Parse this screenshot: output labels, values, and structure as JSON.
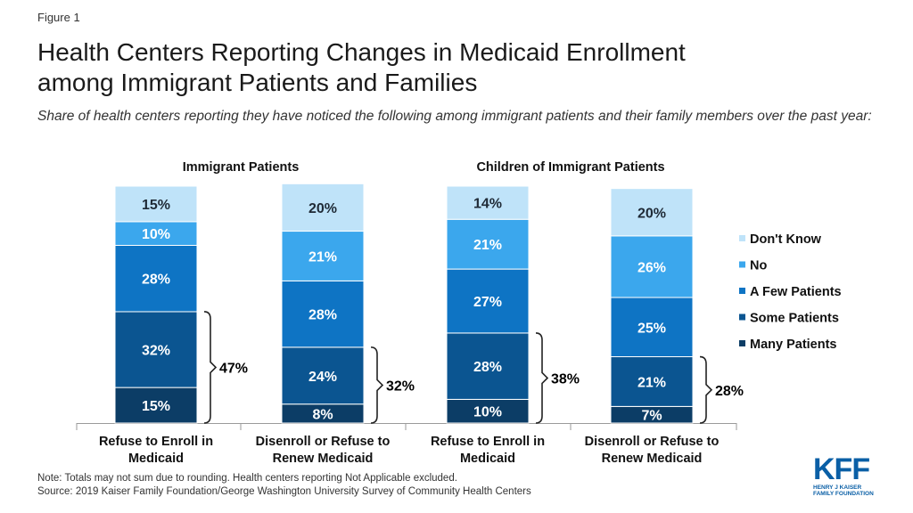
{
  "figure_label": "Figure 1",
  "title_line1": "Health Centers Reporting Changes in Medicaid Enrollment",
  "title_line2": "among Immigrant Patients and Families",
  "subtitle": "Share of health centers reporting they have noticed the following among immigrant patients and their family members over the past year:",
  "note": "Note: Totals may not sum due to rounding. Health centers reporting Not Applicable excluded.",
  "source": "Source: 2019 Kaiser Family Foundation/George Washington University Survey of Community Health Centers",
  "logo": {
    "main": "KFF",
    "line1": "HENRY J KAISER",
    "line2": "FAMILY FOUNDATION"
  },
  "chart_data": {
    "type": "bar",
    "stacked": true,
    "groups": [
      "Immigrant Patients",
      "Children of Immigrant Patients"
    ],
    "categories": [
      {
        "group": "Immigrant Patients",
        "line1": "Refuse to Enroll in",
        "line2": "Medicaid"
      },
      {
        "group": "Immigrant Patients",
        "line1": "Disenroll or Refuse to",
        "line2": "Renew Medicaid"
      },
      {
        "group": "Children of Immigrant Patients",
        "line1": "Refuse to Enroll in",
        "line2": "Medicaid"
      },
      {
        "group": "Children of Immigrant Patients",
        "line1": "Disenroll or Refuse to",
        "line2": "Renew Medicaid"
      }
    ],
    "series": [
      {
        "name": "Many Patients",
        "color": "#0c3d66",
        "values": [
          15,
          8,
          10,
          7
        ]
      },
      {
        "name": "Some Patients",
        "color": "#0b5591",
        "values": [
          32,
          24,
          28,
          21
        ]
      },
      {
        "name": "A Few Patients",
        "color": "#0e74c4",
        "values": [
          28,
          28,
          27,
          25
        ]
      },
      {
        "name": "No",
        "color": "#3ba7ed",
        "values": [
          10,
          21,
          21,
          26
        ]
      },
      {
        "name": "Don't Know",
        "color": "#bfe3f9",
        "values": [
          15,
          20,
          14,
          20
        ]
      }
    ],
    "brackets": [
      "47%",
      "32%",
      "38%",
      "28%"
    ],
    "legend_position": "right",
    "grid": false
  }
}
